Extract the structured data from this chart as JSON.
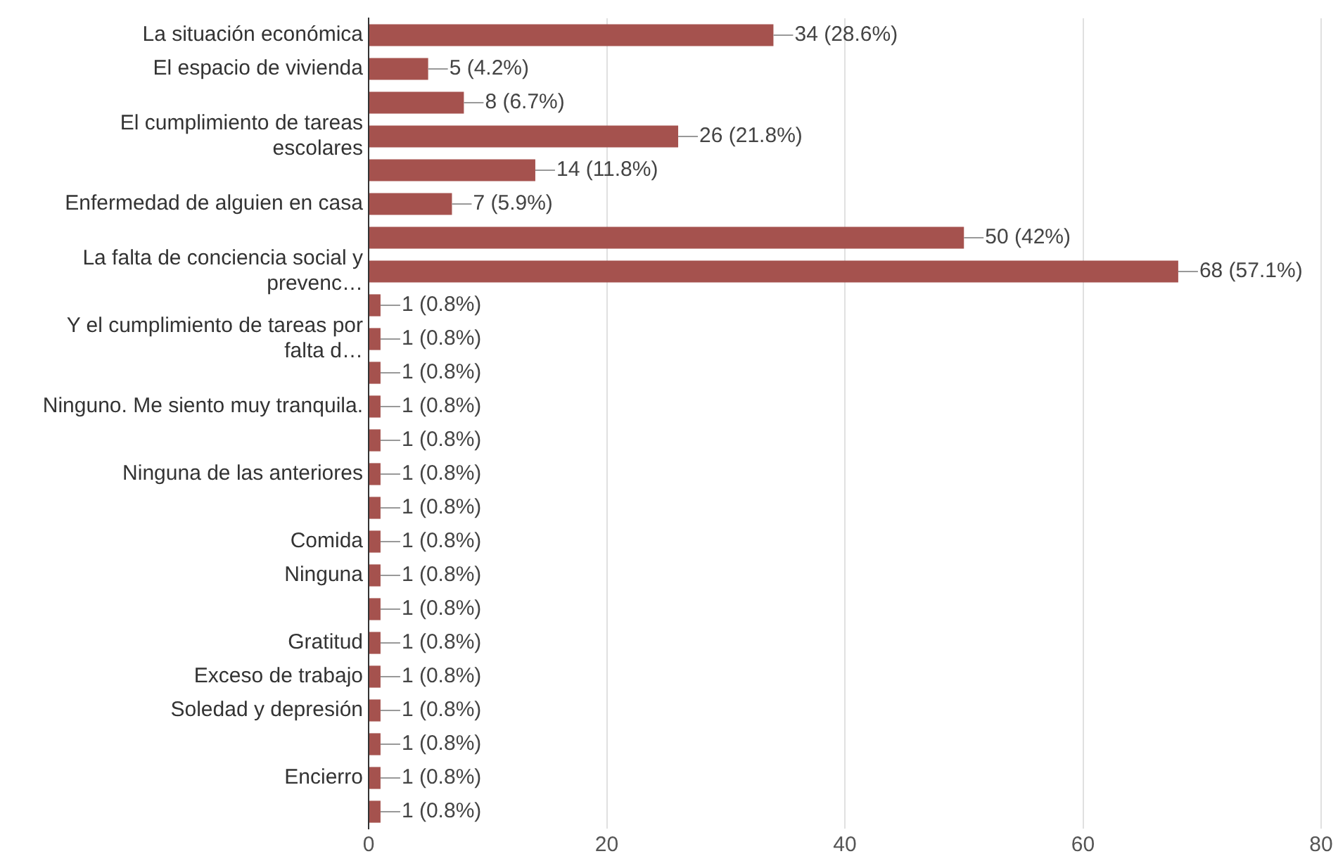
{
  "chart_data": {
    "type": "bar",
    "orientation": "horizontal",
    "categories": [
      "La situación económica",
      "El espacio de vivienda",
      null,
      "El cumplimiento de tareas escolares",
      null,
      "Enfermedad de alguien en casa",
      null,
      "La falta de conciencia social y prevenc…",
      null,
      "Y el cumplimiento de tareas por falta d…",
      null,
      "Ninguno. Me siento muy tranquila.",
      null,
      "Ninguna de las anteriores",
      null,
      "Comida",
      "Ninguna",
      null,
      "Gratitud",
      "Exceso de trabajo",
      "Soledad y depresión",
      null,
      "Encierro",
      null
    ],
    "values": [
      34,
      5,
      8,
      26,
      14,
      7,
      50,
      68,
      1,
      1,
      1,
      1,
      1,
      1,
      1,
      1,
      1,
      1,
      1,
      1,
      1,
      1,
      1,
      1
    ],
    "value_labels": [
      "34 (28.6%)",
      "5 (4.2%)",
      "8 (6.7%)",
      "26 (21.8%)",
      "14 (11.8%)",
      "7 (5.9%)",
      "50 (42%)",
      "68 (57.1%)",
      "1 (0.8%)",
      "1 (0.8%)",
      "1 (0.8%)",
      "1 (0.8%)",
      "1 (0.8%)",
      "1 (0.8%)",
      "1 (0.8%)",
      "1 (0.8%)",
      "1 (0.8%)",
      "1 (0.8%)",
      "1 (0.8%)",
      "1 (0.8%)",
      "1 (0.8%)",
      "1 (0.8%)",
      "1 (0.8%)",
      "1 (0.8%)"
    ],
    "color": "#a5524e",
    "xlim": [
      0,
      80
    ],
    "xticks": [
      0,
      20,
      40,
      60,
      80
    ],
    "grid": "x",
    "legend": false
  }
}
